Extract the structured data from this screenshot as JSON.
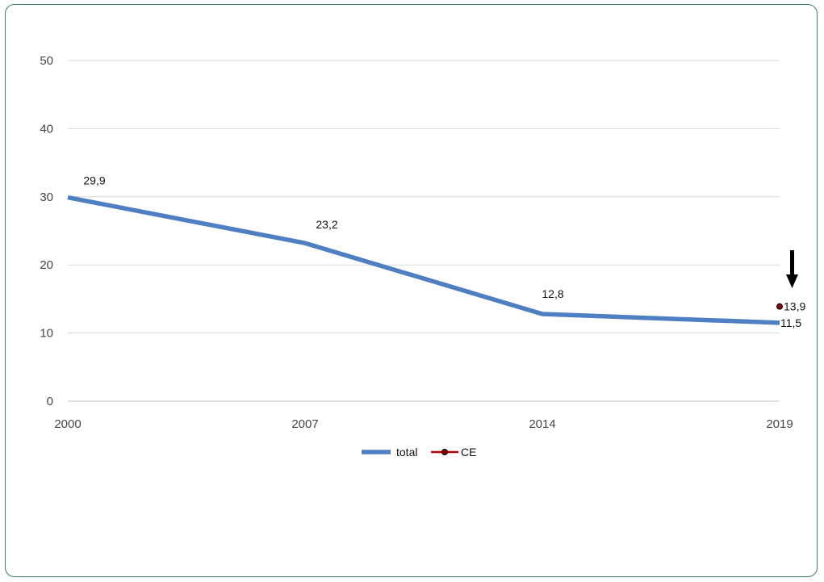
{
  "chart_data": {
    "type": "line",
    "categories": [
      "2000",
      "2007",
      "2014",
      "2019"
    ],
    "ylim": [
      0,
      50
    ],
    "yticks": [
      "0",
      "10",
      "20",
      "30",
      "40",
      "50"
    ],
    "grid": true,
    "legend_position": "bottom-center",
    "series": [
      {
        "name": "total",
        "color": "#4f7fc3",
        "values": [
          29.9,
          23.2,
          12.8,
          11.5
        ],
        "labels": [
          "29,9",
          "23,2",
          "12,8",
          "11,5"
        ]
      },
      {
        "name": "CE",
        "color": "#c00000",
        "marker_fill": "#8b0000",
        "values": [
          null,
          null,
          null,
          13.9
        ],
        "labels": [
          null,
          null,
          null,
          "13,9"
        ]
      }
    ],
    "annotations": [
      {
        "type": "arrow-down",
        "category": "2019",
        "icon": "down-arrow-icon"
      }
    ]
  }
}
